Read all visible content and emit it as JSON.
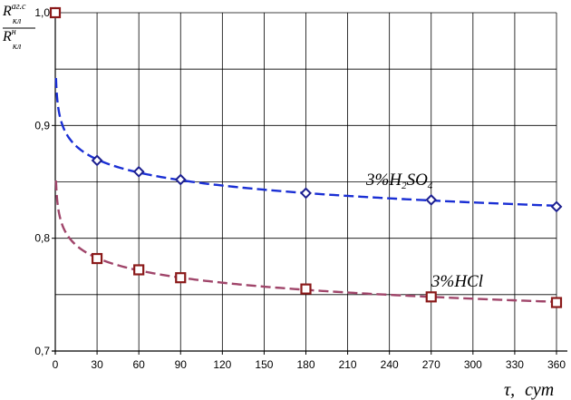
{
  "chart_data": {
    "type": "scatter",
    "ylabel": {
      "top_base": "R",
      "top_sub": "кл",
      "top_sup": "аг.с",
      "bottom_base": "R",
      "bottom_sub": "кл",
      "bottom_sup": "н"
    },
    "xlabel": {
      "symbol": "τ,",
      "unit": "сут"
    },
    "xlim": [
      0,
      360
    ],
    "ylim": [
      0.7,
      1.0
    ],
    "x_ticks": [
      "0",
      "30",
      "60",
      "90",
      "120",
      "150",
      "180",
      "210",
      "240",
      "270",
      "300",
      "330",
      "360"
    ],
    "y_ticks": [
      "0,7",
      "0,8",
      "0,9",
      "1,0"
    ],
    "x_tick_values": [
      0,
      30,
      60,
      90,
      120,
      150,
      180,
      210,
      240,
      270,
      300,
      330,
      360
    ],
    "y_tick_values": [
      0.7,
      0.8,
      0.9,
      1.0
    ],
    "y_minor_step": 0.05,
    "grid": true,
    "series": [
      {
        "name_parts": [
          "3%H",
          "2",
          "SO",
          "4"
        ],
        "color": "#1a2fd4",
        "marker": "diamond",
        "marker_color": "#1c1f8f",
        "x": [
          0,
          30,
          60,
          90,
          180,
          270,
          360
        ],
        "y": [
          1.0,
          0.869,
          0.859,
          0.852,
          0.84,
          0.834,
          0.828
        ],
        "trend": "power"
      },
      {
        "name_parts": [
          "3%HCl"
        ],
        "color": "#a0456a",
        "marker": "square",
        "marker_color": "#8b1a1a",
        "x": [
          0,
          30,
          60,
          90,
          180,
          270,
          360
        ],
        "y": [
          1.0,
          0.782,
          0.772,
          0.765,
          0.755,
          0.748,
          0.743
        ],
        "trend": "power"
      }
    ]
  }
}
